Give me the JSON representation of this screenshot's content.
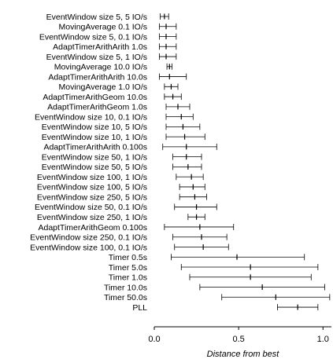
{
  "chart_data": {
    "type": "errorbar",
    "xlabel": "Distance from best",
    "xlim": [
      0.0,
      1.05
    ],
    "xticks": [
      {
        "value": 0.0,
        "label": "0.0"
      },
      {
        "value": 0.5,
        "label": "0.5"
      },
      {
        "value": 1.0,
        "label": "1.0"
      }
    ],
    "grid": false,
    "rows": [
      {
        "label": "EventWindow size 5, 5 IO/s",
        "mean": 0.06,
        "low": 0.035,
        "high": 0.085
      },
      {
        "label": "MovingAverage 0.1 IO/s",
        "mean": 0.07,
        "low": 0.03,
        "high": 0.13
      },
      {
        "label": "EventWindow size 5, 0.1 IO/s",
        "mean": 0.07,
        "low": 0.03,
        "high": 0.13
      },
      {
        "label": "AdaptTimerArithArith 1.0s",
        "mean": 0.07,
        "low": 0.03,
        "high": 0.13
      },
      {
        "label": "EventWindow size 5, 1 IO/s",
        "mean": 0.07,
        "low": 0.03,
        "high": 0.13
      },
      {
        "label": "MovingAverage 10.0 IO/s",
        "mean": 0.09,
        "low": 0.075,
        "high": 0.105
      },
      {
        "label": "AdaptTimerArithArith 10.0s",
        "mean": 0.09,
        "low": 0.03,
        "high": 0.19
      },
      {
        "label": "MovingAverage 1.0 IO/s",
        "mean": 0.1,
        "low": 0.06,
        "high": 0.14
      },
      {
        "label": "AdaptTimerArithGeom 10.0s",
        "mean": 0.11,
        "low": 0.06,
        "high": 0.16
      },
      {
        "label": "AdaptTimerArithGeom 1.0s",
        "mean": 0.14,
        "low": 0.07,
        "high": 0.21
      },
      {
        "label": "EventWindow size 10, 0.1 IO/s",
        "mean": 0.16,
        "low": 0.07,
        "high": 0.23
      },
      {
        "label": "EventWindow size 10, 5 IO/s",
        "mean": 0.17,
        "low": 0.07,
        "high": 0.27
      },
      {
        "label": "EventWindow size 10, 1 IO/s",
        "mean": 0.18,
        "low": 0.07,
        "high": 0.3
      },
      {
        "label": "AdaptTimerArithArith 0.100s",
        "mean": 0.19,
        "low": 0.05,
        "high": 0.37
      },
      {
        "label": "EventWindow size 50, 1 IO/s",
        "mean": 0.19,
        "low": 0.11,
        "high": 0.28
      },
      {
        "label": "EventWindow size 50, 5 IO/s",
        "mean": 0.2,
        "low": 0.11,
        "high": 0.28
      },
      {
        "label": "EventWindow size 100, 1 IO/s",
        "mean": 0.22,
        "low": 0.13,
        "high": 0.29
      },
      {
        "label": "EventWindow size 100, 5 IO/s",
        "mean": 0.23,
        "low": 0.15,
        "high": 0.3
      },
      {
        "label": "EventWindow size 250, 5 IO/s",
        "mean": 0.24,
        "low": 0.15,
        "high": 0.31
      },
      {
        "label": "EventWindow size 50, 0.1 IO/s",
        "mean": 0.25,
        "low": 0.12,
        "high": 0.37
      },
      {
        "label": "EventWindow size 250, 1 IO/s",
        "mean": 0.25,
        "low": 0.2,
        "high": 0.3
      },
      {
        "label": "AdaptTimerArithGeom 0.100s",
        "mean": 0.27,
        "low": 0.06,
        "high": 0.47
      },
      {
        "label": "EventWindow size 250, 0.1 IO/s",
        "mean": 0.28,
        "low": 0.11,
        "high": 0.43
      },
      {
        "label": "EventWindow size 100, 0.1 IO/s",
        "mean": 0.29,
        "low": 0.12,
        "high": 0.44
      },
      {
        "label": "Timer 0.5s",
        "mean": 0.49,
        "low": 0.1,
        "high": 0.89
      },
      {
        "label": "Timer 5.0s",
        "mean": 0.57,
        "low": 0.16,
        "high": 0.97
      },
      {
        "label": "Timer 1.0s",
        "mean": 0.57,
        "low": 0.21,
        "high": 0.93
      },
      {
        "label": "Timer 10.0s",
        "mean": 0.64,
        "low": 0.27,
        "high": 1.01
      },
      {
        "label": "Timer 50.0s",
        "mean": 0.72,
        "low": 0.4,
        "high": 1.04
      },
      {
        "label": "PLL",
        "mean": 0.85,
        "low": 0.73,
        "high": 0.97
      }
    ]
  }
}
